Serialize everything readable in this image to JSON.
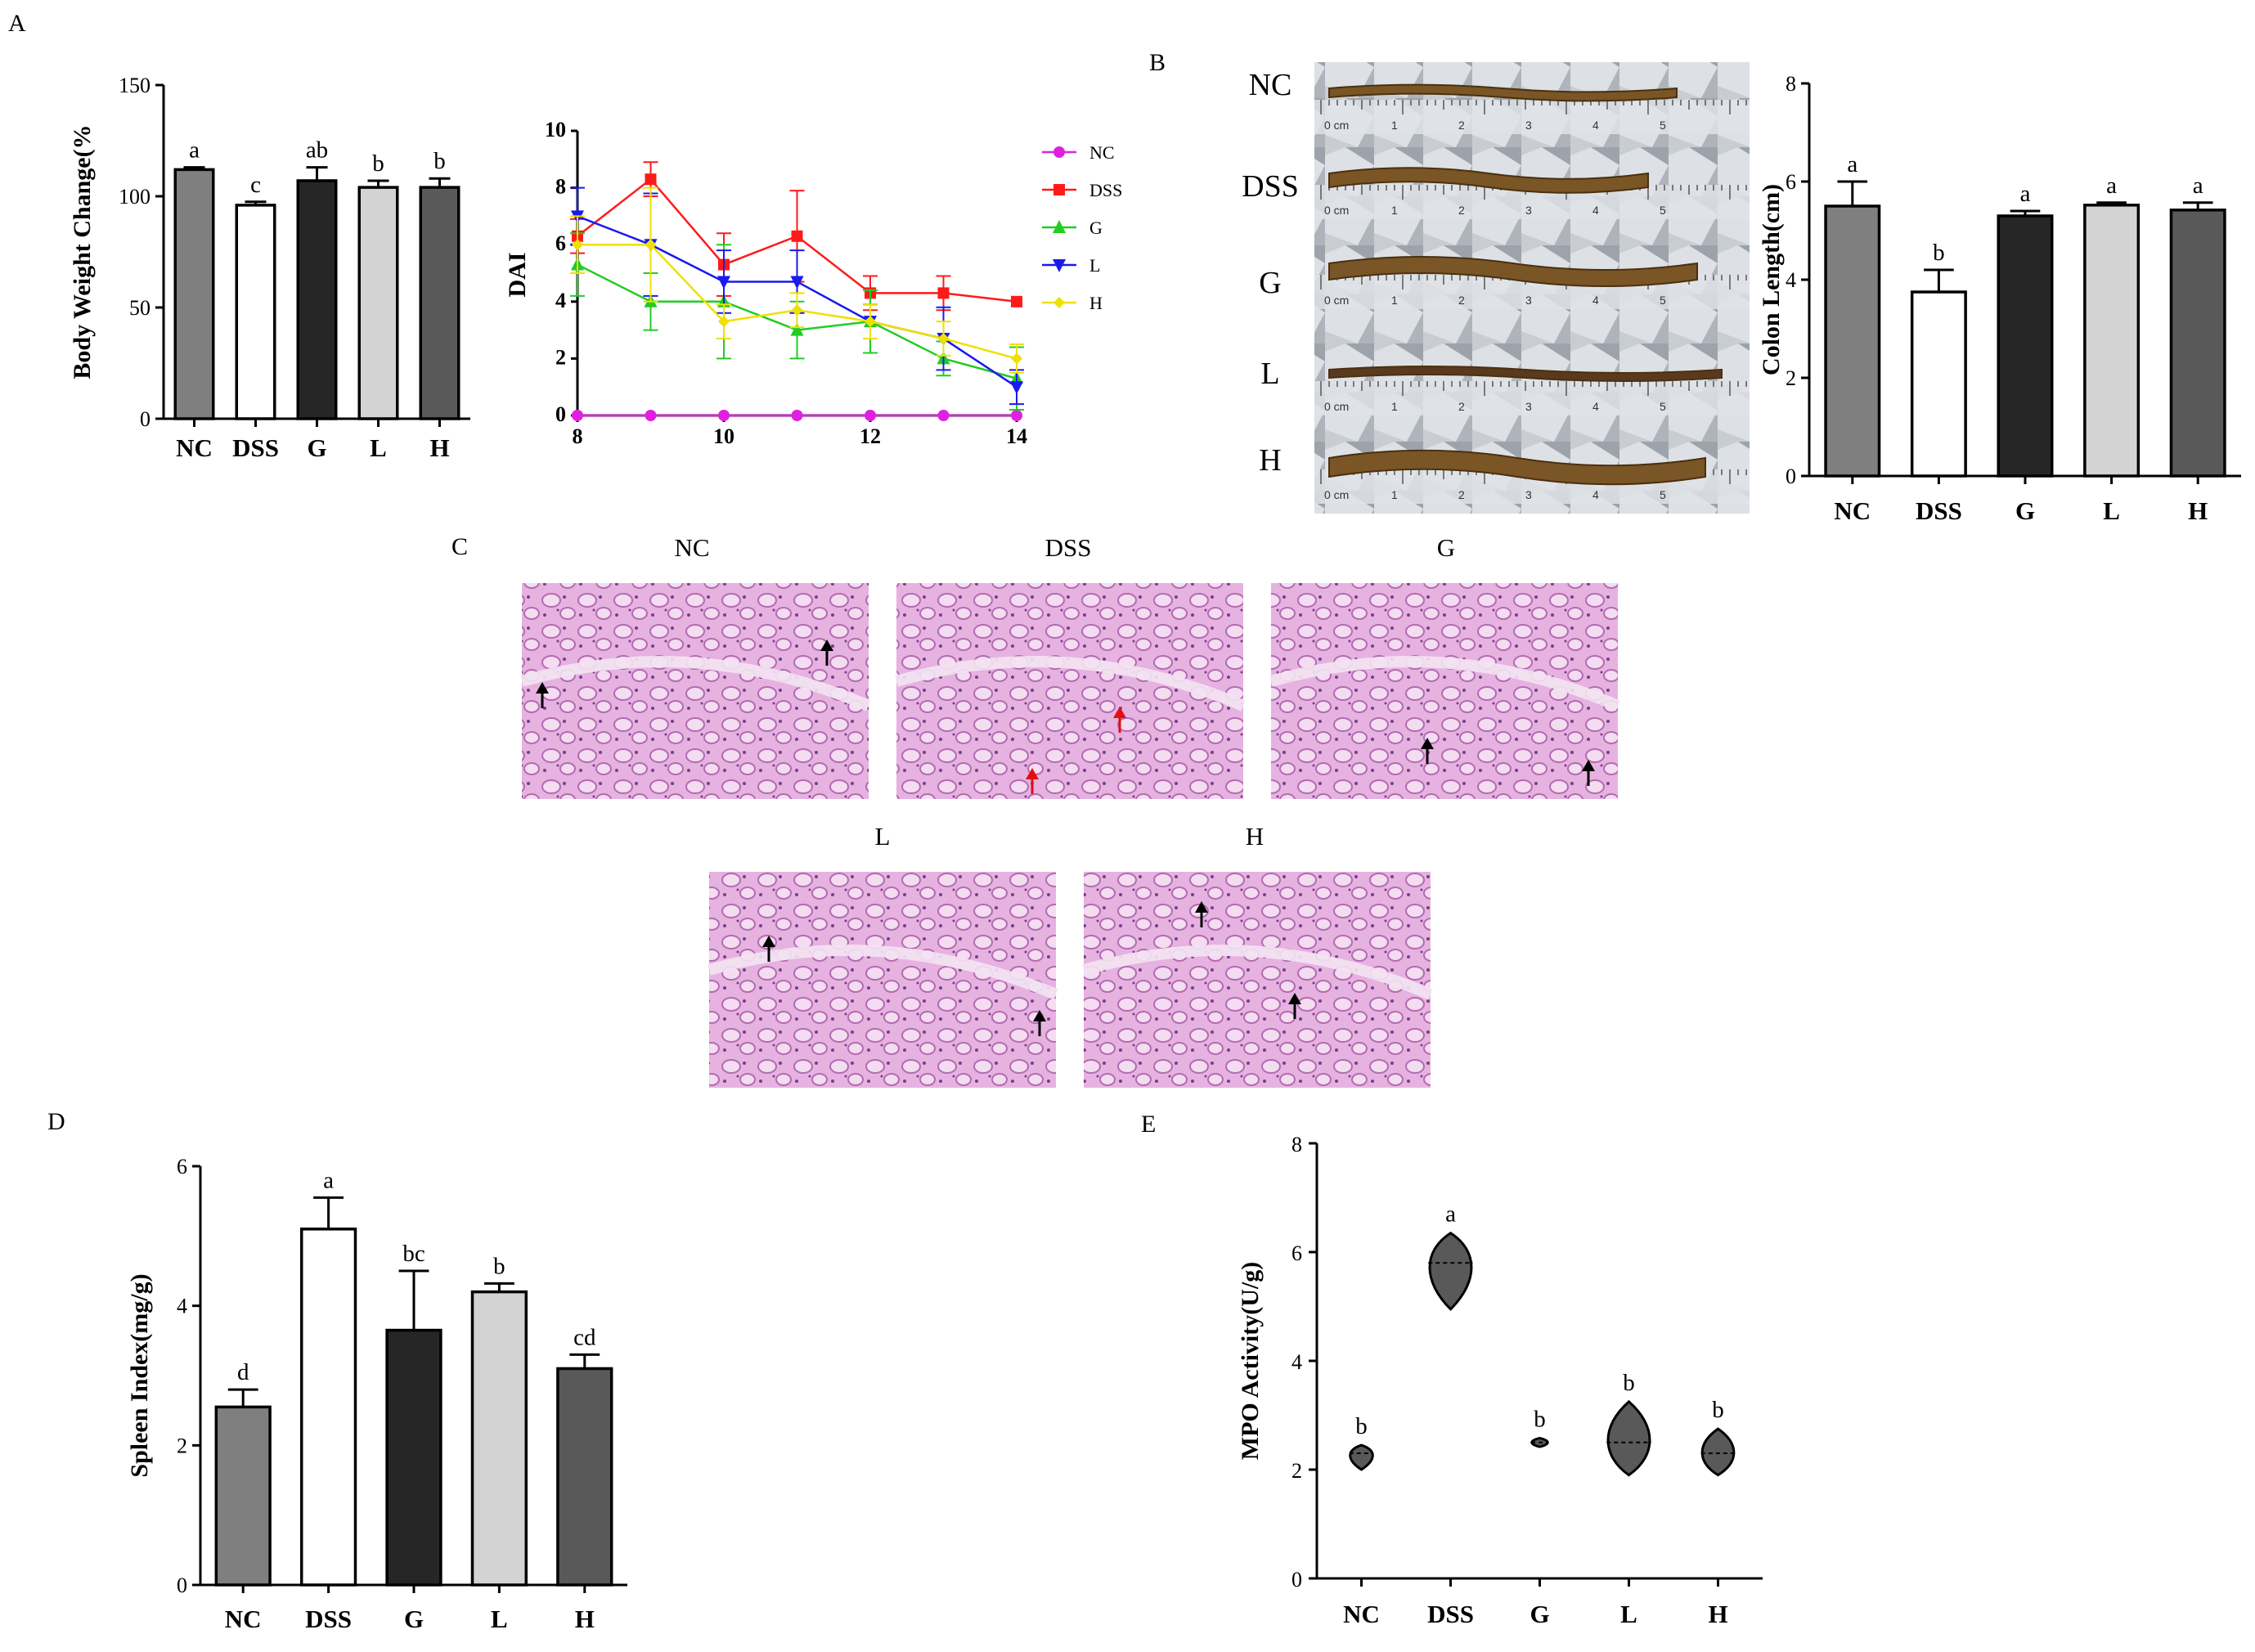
{
  "panels": {
    "A": "A",
    "B": "B",
    "C": "C",
    "D": "D",
    "E": "E"
  },
  "colors": {
    "NC": "#7f7f7f",
    "DSS": "#ffffff",
    "G": "#262626",
    "L": "#d3d3d3",
    "H": "#595959",
    "line_NC": "#e020e0",
    "line_DSS": "#ff1a1a",
    "line_G": "#22cc22",
    "line_L": "#1a1aee",
    "line_H": "#f0e000"
  },
  "chart_data": [
    {
      "id": "body_weight",
      "type": "bar",
      "categories": [
        "NC",
        "DSS",
        "G",
        "L",
        "H"
      ],
      "values": [
        112,
        96,
        107,
        104,
        104
      ],
      "errors": [
        1,
        1.5,
        6,
        3,
        4
      ],
      "significance": [
        "a",
        "c",
        "ab",
        "b",
        "b"
      ],
      "ylabel": "Body Weight Change(%",
      "ylim": [
        0,
        150
      ],
      "yticks": [
        "0",
        "50",
        "100",
        "150"
      ],
      "ytick_values": [
        0,
        50,
        100,
        150
      ]
    },
    {
      "id": "dai",
      "type": "line",
      "ylabel": "DAI",
      "x": [
        8,
        9,
        10,
        11,
        12,
        13,
        14
      ],
      "xlim": [
        8,
        14
      ],
      "xticks": [
        "8",
        "10",
        "12",
        "14"
      ],
      "xtick_values": [
        8,
        10,
        12,
        14
      ],
      "ylim": [
        0,
        10
      ],
      "yticks": [
        "0",
        "2",
        "4",
        "6",
        "8",
        "10"
      ],
      "ytick_values": [
        0,
        2,
        4,
        6,
        8,
        10
      ],
      "series": [
        {
          "name": "NC",
          "marker": "circle",
          "values": [
            0,
            0,
            0,
            0,
            0,
            0,
            0
          ],
          "errors": [
            0,
            0,
            0,
            0,
            0,
            0,
            0
          ]
        },
        {
          "name": "DSS",
          "marker": "square",
          "values": [
            6.3,
            8.3,
            5.3,
            6.3,
            4.3,
            4.3,
            4.0
          ],
          "errors": [
            0.6,
            0.6,
            1.1,
            1.6,
            0.6,
            0.6,
            0
          ]
        },
        {
          "name": "G",
          "marker": "triangle-up",
          "values": [
            5.3,
            4.0,
            4.0,
            3.0,
            3.3,
            2.0,
            1.3
          ],
          "errors": [
            1.1,
            1.0,
            2.0,
            1.0,
            1.1,
            0.6,
            1.1
          ]
        },
        {
          "name": "L",
          "marker": "triangle-down",
          "values": [
            7.0,
            6.0,
            4.7,
            4.7,
            3.3,
            2.7,
            1.0
          ],
          "errors": [
            1.0,
            1.8,
            1.1,
            1.1,
            0.6,
            1.1,
            0.6
          ]
        },
        {
          "name": "H",
          "marker": "diamond",
          "values": [
            6.0,
            6.0,
            3.3,
            3.7,
            3.3,
            2.7,
            2.0
          ],
          "errors": [
            1.0,
            2.0,
            0.6,
            0.6,
            0.6,
            0.6,
            0.5
          ]
        }
      ],
      "legend": [
        "NC",
        "DSS",
        "G",
        "L",
        "H"
      ]
    },
    {
      "id": "colon_length",
      "type": "bar",
      "categories": [
        "NC",
        "DSS",
        "G",
        "L",
        "H"
      ],
      "values": [
        5.5,
        3.75,
        5.3,
        5.52,
        5.42
      ],
      "errors": [
        0.5,
        0.45,
        0.1,
        0.05,
        0.15
      ],
      "significance": [
        "a",
        "b",
        "a",
        "a",
        "a"
      ],
      "ylabel": "Colon Length(cm)",
      "ylim": [
        0,
        8
      ],
      "yticks": [
        "0",
        "2",
        "4",
        "6",
        "8"
      ],
      "ytick_values": [
        0,
        2,
        4,
        6,
        8
      ]
    },
    {
      "id": "spleen_index",
      "type": "bar",
      "categories": [
        "NC",
        "DSS",
        "G",
        "L",
        "H"
      ],
      "values": [
        2.55,
        5.1,
        3.65,
        4.2,
        3.1
      ],
      "errors": [
        0.25,
        0.45,
        0.85,
        0.12,
        0.2
      ],
      "significance": [
        "d",
        "a",
        "bc",
        "b",
        "cd"
      ],
      "ylabel": "Spleen Index(mg/g)",
      "ylim": [
        0,
        6
      ],
      "yticks": [
        "0",
        "2",
        "4",
        "6"
      ],
      "ytick_values": [
        0,
        2,
        4,
        6
      ]
    },
    {
      "id": "mpo_activity",
      "type": "violin",
      "categories": [
        "NC",
        "DSS",
        "G",
        "L",
        "H"
      ],
      "medians": [
        2.3,
        5.8,
        2.5,
        2.5,
        2.3
      ],
      "ranges": [
        [
          2.0,
          2.45
        ],
        [
          4.95,
          6.35
        ],
        [
          2.42,
          2.58
        ],
        [
          1.9,
          3.25
        ],
        [
          1.9,
          2.75
        ]
      ],
      "significance": [
        "b",
        "a",
        "b",
        "b",
        "b"
      ],
      "ylabel": "MPO Activity(U/g)",
      "ylim": [
        0,
        8
      ],
      "yticks": [
        "0",
        "2",
        "4",
        "6",
        "8"
      ],
      "ytick_values": [
        0,
        2,
        4,
        6,
        8
      ]
    }
  ],
  "colon_photo": {
    "labels": [
      "NC",
      "DSS",
      "G",
      "L",
      "H"
    ],
    "ruler_text": [
      "0 cm",
      "1",
      "2",
      "3",
      "4",
      "5"
    ]
  },
  "histology": {
    "titles": [
      "NC",
      "DSS",
      "G",
      "L",
      "H"
    ]
  }
}
